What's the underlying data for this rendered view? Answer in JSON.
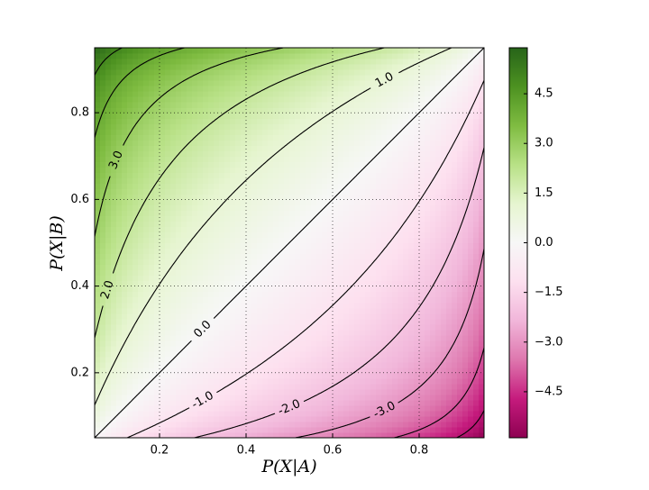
{
  "chart_data": {
    "type": "contour",
    "xlabel": "P(X|A)",
    "ylabel": "P(X|B)",
    "xlim": [
      0.05,
      0.95
    ],
    "ylim": [
      0.05,
      0.95
    ],
    "xticks": [
      0.2,
      0.4,
      0.6,
      0.8
    ],
    "yticks": [
      0.2,
      0.4,
      0.6,
      0.8
    ],
    "grid": true,
    "contour_levels": [
      -5,
      -4,
      -3,
      -2,
      -1,
      0,
      1,
      2,
      3,
      4,
      5
    ],
    "contour_labels": [
      {
        "value": 3,
        "label": "3.0"
      },
      {
        "value": 2,
        "label": "2.0"
      },
      {
        "value": 1,
        "label": "1.0"
      },
      {
        "value": 0,
        "label": "0.0"
      },
      {
        "value": -1,
        "label": "-1.0"
      },
      {
        "value": -2,
        "label": "-2.0"
      },
      {
        "value": -3,
        "label": "-3.0"
      }
    ],
    "colormap": [
      "#8e0152",
      "#c51b7d",
      "#de77ae",
      "#f1b6da",
      "#fde0ef",
      "#f7f7f7",
      "#e6f5d0",
      "#b8e186",
      "#7fbc41",
      "#4d9221",
      "#276419"
    ],
    "colorbar_lim": [
      -5.89,
      5.89
    ],
    "colorbar_ticks": [
      4.5,
      {
        "value": 3,
        "label": "3.0"
      },
      1.5,
      {
        "value": 0,
        "label": "0.0"
      },
      {
        "value": -1.5,
        "label": "−1.5"
      },
      {
        "value": -3,
        "label": "−3.0"
      },
      {
        "value": -4.5,
        "label": "−4.5"
      }
    ]
  }
}
